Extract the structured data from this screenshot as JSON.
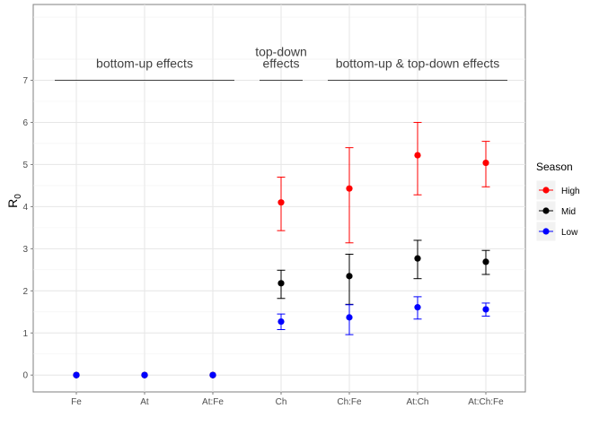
{
  "chart_data": {
    "type": "scatter",
    "subtype": "pointrange-with-errorbars",
    "categories": [
      "Fe",
      "At",
      "At:Fe",
      "Ch",
      "Ch:Fe",
      "At:Ch",
      "At:Ch:Fe"
    ],
    "ylabel_base": "R",
    "ylabel_sub": "0",
    "xlabel": "",
    "ylim": [
      -0.4,
      8.8
    ],
    "yticks": [
      "0",
      "1",
      "2",
      "3",
      "4",
      "5",
      "6",
      "7"
    ],
    "grid": true,
    "legend": {
      "title": "Season",
      "placement": "right"
    },
    "series": [
      {
        "name": "High",
        "color": "#ff0000",
        "points": [
          {
            "category": "Fe",
            "y": 0
          },
          {
            "category": "At",
            "y": 0
          },
          {
            "category": "At:Fe",
            "y": 0
          },
          {
            "category": "Ch",
            "y": 4.1,
            "ymin": 3.43,
            "ymax": 4.7
          },
          {
            "category": "Ch:Fe",
            "y": 4.43,
            "ymin": 3.14,
            "ymax": 5.4
          },
          {
            "category": "At:Ch",
            "y": 5.22,
            "ymin": 4.28,
            "ymax": 6.0
          },
          {
            "category": "At:Ch:Fe",
            "y": 5.04,
            "ymin": 4.47,
            "ymax": 5.55
          }
        ]
      },
      {
        "name": "Mid",
        "color": "#000000",
        "points": [
          {
            "category": "Fe",
            "y": 0
          },
          {
            "category": "At",
            "y": 0
          },
          {
            "category": "At:Fe",
            "y": 0
          },
          {
            "category": "Ch",
            "y": 2.18,
            "ymin": 1.82,
            "ymax": 2.49
          },
          {
            "category": "Ch:Fe",
            "y": 2.35,
            "ymin": 1.68,
            "ymax": 2.87
          },
          {
            "category": "At:Ch",
            "y": 2.77,
            "ymin": 2.29,
            "ymax": 3.2
          },
          {
            "category": "At:Ch:Fe",
            "y": 2.69,
            "ymin": 2.39,
            "ymax": 2.96
          }
        ]
      },
      {
        "name": "Low",
        "color": "#0000ff",
        "points": [
          {
            "category": "Fe",
            "y": 0
          },
          {
            "category": "At",
            "y": 0
          },
          {
            "category": "At:Fe",
            "y": 0
          },
          {
            "category": "Ch",
            "y": 1.27,
            "ymin": 1.08,
            "ymax": 1.45
          },
          {
            "category": "Ch:Fe",
            "y": 1.37,
            "ymin": 0.96,
            "ymax": 1.67
          },
          {
            "category": "At:Ch",
            "y": 1.61,
            "ymin": 1.33,
            "ymax": 1.86
          },
          {
            "category": "At:Ch:Fe",
            "y": 1.56,
            "ymin": 1.4,
            "ymax": 1.71
          }
        ]
      }
    ],
    "annotations": [
      {
        "label": [
          "bottom-up effects"
        ],
        "from": "Fe",
        "to": "At:Fe",
        "y": 7
      },
      {
        "label": [
          "top-down",
          "effects"
        ],
        "from": "Ch",
        "to": "Ch",
        "y": 7
      },
      {
        "label": [
          "bottom-up & top-down effects"
        ],
        "from": "Ch:Fe",
        "to": "At:Ch:Fe",
        "y": 7
      }
    ]
  }
}
